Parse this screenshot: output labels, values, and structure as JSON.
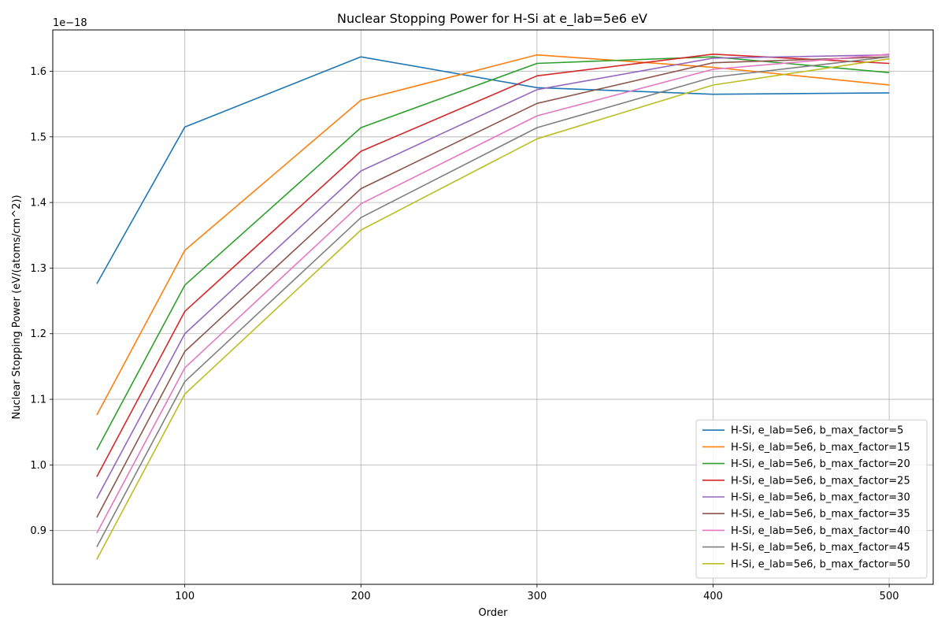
{
  "chart_data": {
    "type": "line",
    "title": "Nuclear Stopping Power for H-Si at e_lab=5e6 eV",
    "xlabel": "Order",
    "ylabel": "Nuclear Stopping Power (eV/(atoms/cm^2))",
    "y_offset_label": "1e−18",
    "x": [
      50,
      100,
      200,
      300,
      400,
      500
    ],
    "xlim": [
      25,
      525
    ],
    "ylim": [
      0.818,
      1.663
    ],
    "xticks": [
      100,
      200,
      300,
      400,
      500
    ],
    "yticks": [
      0.9,
      1.0,
      1.1,
      1.2,
      1.3,
      1.4,
      1.5,
      1.6
    ],
    "ytick_labels": [
      "0.9",
      "1.0",
      "1.1",
      "1.2",
      "1.3",
      "1.4",
      "1.5",
      "1.6"
    ],
    "grid": true,
    "legend_position": "lower-right",
    "series": [
      {
        "name": "H-Si, e_lab=5e6, b_max_factor=5",
        "color": "#1f77b4",
        "values": [
          1.276,
          1.515,
          1.622,
          1.575,
          1.565,
          1.567
        ]
      },
      {
        "name": "H-Si, e_lab=5e6, b_max_factor=15",
        "color": "#ff7f0e",
        "values": [
          1.076,
          1.327,
          1.556,
          1.625,
          1.606,
          1.579
        ]
      },
      {
        "name": "H-Si, e_lab=5e6, b_max_factor=20",
        "color": "#2ca02c",
        "values": [
          1.023,
          1.274,
          1.514,
          1.612,
          1.622,
          1.598
        ]
      },
      {
        "name": "H-Si, e_lab=5e6, b_max_factor=25",
        "color": "#d62728",
        "values": [
          0.982,
          1.234,
          1.478,
          1.593,
          1.626,
          1.612
        ]
      },
      {
        "name": "H-Si, e_lab=5e6, b_max_factor=30",
        "color": "#9467bd",
        "values": [
          0.949,
          1.2,
          1.448,
          1.572,
          1.62,
          1.625
        ]
      },
      {
        "name": "H-Si, e_lab=5e6, b_max_factor=35",
        "color": "#8c564b",
        "values": [
          0.92,
          1.173,
          1.421,
          1.551,
          1.613,
          1.622
        ]
      },
      {
        "name": "H-Si, e_lab=5e6, b_max_factor=40",
        "color": "#e377c2",
        "values": [
          0.896,
          1.148,
          1.398,
          1.532,
          1.603,
          1.626
        ]
      },
      {
        "name": "H-Si, e_lab=5e6, b_max_factor=45",
        "color": "#7f7f7f",
        "values": [
          0.875,
          1.127,
          1.377,
          1.514,
          1.591,
          1.622
        ]
      },
      {
        "name": "H-Si, e_lab=5e6, b_max_factor=50",
        "color": "#bcbd22",
        "values": [
          0.856,
          1.108,
          1.358,
          1.497,
          1.579,
          1.619
        ]
      }
    ]
  }
}
